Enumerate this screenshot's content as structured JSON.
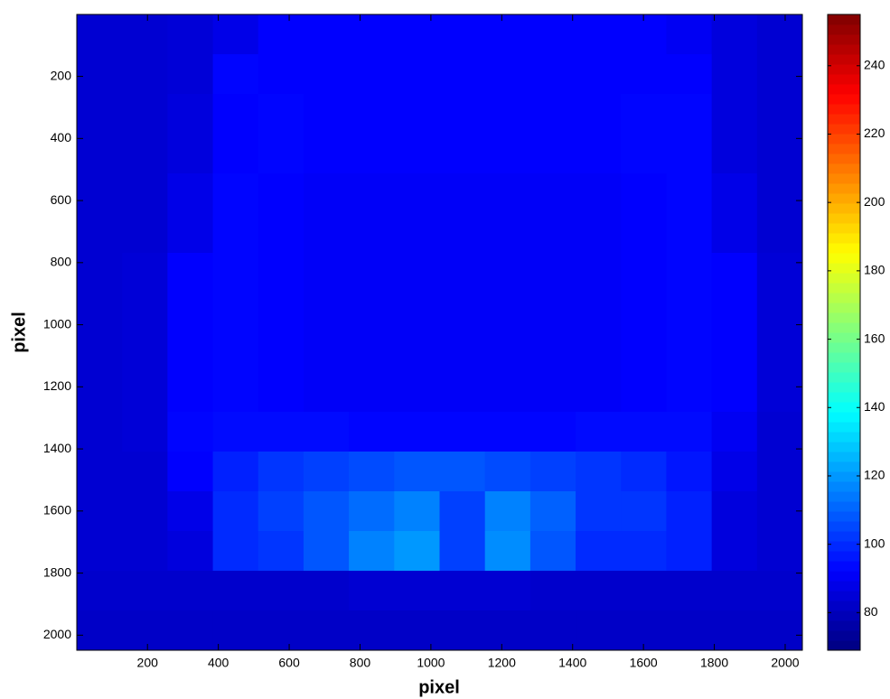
{
  "chart_data": {
    "type": "heatmap",
    "colormap": "jet",
    "x_label": "pixel",
    "y_label": "pixel",
    "xlim": [
      0.5,
      2048.5
    ],
    "ylim": [
      0.5,
      2048.5
    ],
    "y_reversed": true,
    "xticks": [
      200,
      400,
      600,
      800,
      1000,
      1200,
      1400,
      1600,
      1800,
      2000
    ],
    "yticks": [
      200,
      400,
      600,
      800,
      1000,
      1200,
      1400,
      1600,
      1800,
      2000
    ],
    "clim": [
      69,
      255
    ],
    "cticks": [
      80,
      100,
      120,
      140,
      160,
      180,
      200,
      220,
      240
    ],
    "z": [
      [
        84,
        84,
        85,
        88,
        92,
        92,
        92,
        92,
        92,
        92,
        92,
        92,
        92,
        90,
        86,
        84
      ],
      [
        84,
        84,
        85,
        93,
        92,
        92,
        92,
        92,
        92,
        92,
        92,
        92,
        92,
        92,
        86,
        84
      ],
      [
        84,
        84,
        86,
        92,
        93,
        92,
        92,
        92,
        92,
        92,
        92,
        92,
        93,
        93,
        86,
        84
      ],
      [
        84,
        84,
        86,
        92,
        93,
        92,
        92,
        92,
        92,
        92,
        92,
        92,
        93,
        93,
        86,
        84
      ],
      [
        84,
        84,
        88,
        93,
        92,
        91,
        91,
        91,
        91,
        91,
        91,
        91,
        92,
        93,
        88,
        84
      ],
      [
        84,
        84,
        88,
        93,
        92,
        91,
        91,
        91,
        91,
        91,
        91,
        91,
        92,
        93,
        88,
        84
      ],
      [
        84,
        85,
        92,
        93,
        92,
        91,
        91,
        91,
        91,
        91,
        91,
        91,
        92,
        93,
        92,
        85
      ],
      [
        84,
        85,
        92,
        93,
        92,
        91,
        91,
        91,
        91,
        91,
        91,
        91,
        92,
        93,
        92,
        85
      ],
      [
        84,
        85,
        92,
        93,
        92,
        91,
        91,
        91,
        91,
        91,
        91,
        91,
        92,
        93,
        92,
        85
      ],
      [
        84,
        85,
        92,
        93,
        92,
        91,
        91,
        91,
        91,
        91,
        91,
        91,
        92,
        93,
        92,
        85
      ],
      [
        84,
        85,
        93,
        94,
        94,
        94,
        93,
        93,
        93,
        93,
        93,
        94,
        94,
        94,
        90,
        84
      ],
      [
        84,
        84,
        92,
        98,
        102,
        104,
        106,
        108,
        108,
        106,
        104,
        102,
        100,
        96,
        88,
        84
      ],
      [
        84,
        84,
        88,
        100,
        104,
        108,
        112,
        116,
        104,
        116,
        110,
        102,
        102,
        98,
        86,
        84
      ],
      [
        84,
        84,
        86,
        100,
        102,
        108,
        116,
        120,
        104,
        118,
        108,
        100,
        100,
        98,
        86,
        84
      ],
      [
        83,
        83,
        83,
        83,
        83,
        83,
        84,
        84,
        84,
        84,
        83,
        83,
        83,
        83,
        83,
        83
      ],
      [
        82,
        82,
        82,
        82,
        82,
        82,
        82,
        82,
        82,
        82,
        82,
        82,
        82,
        82,
        82,
        82
      ]
    ]
  }
}
